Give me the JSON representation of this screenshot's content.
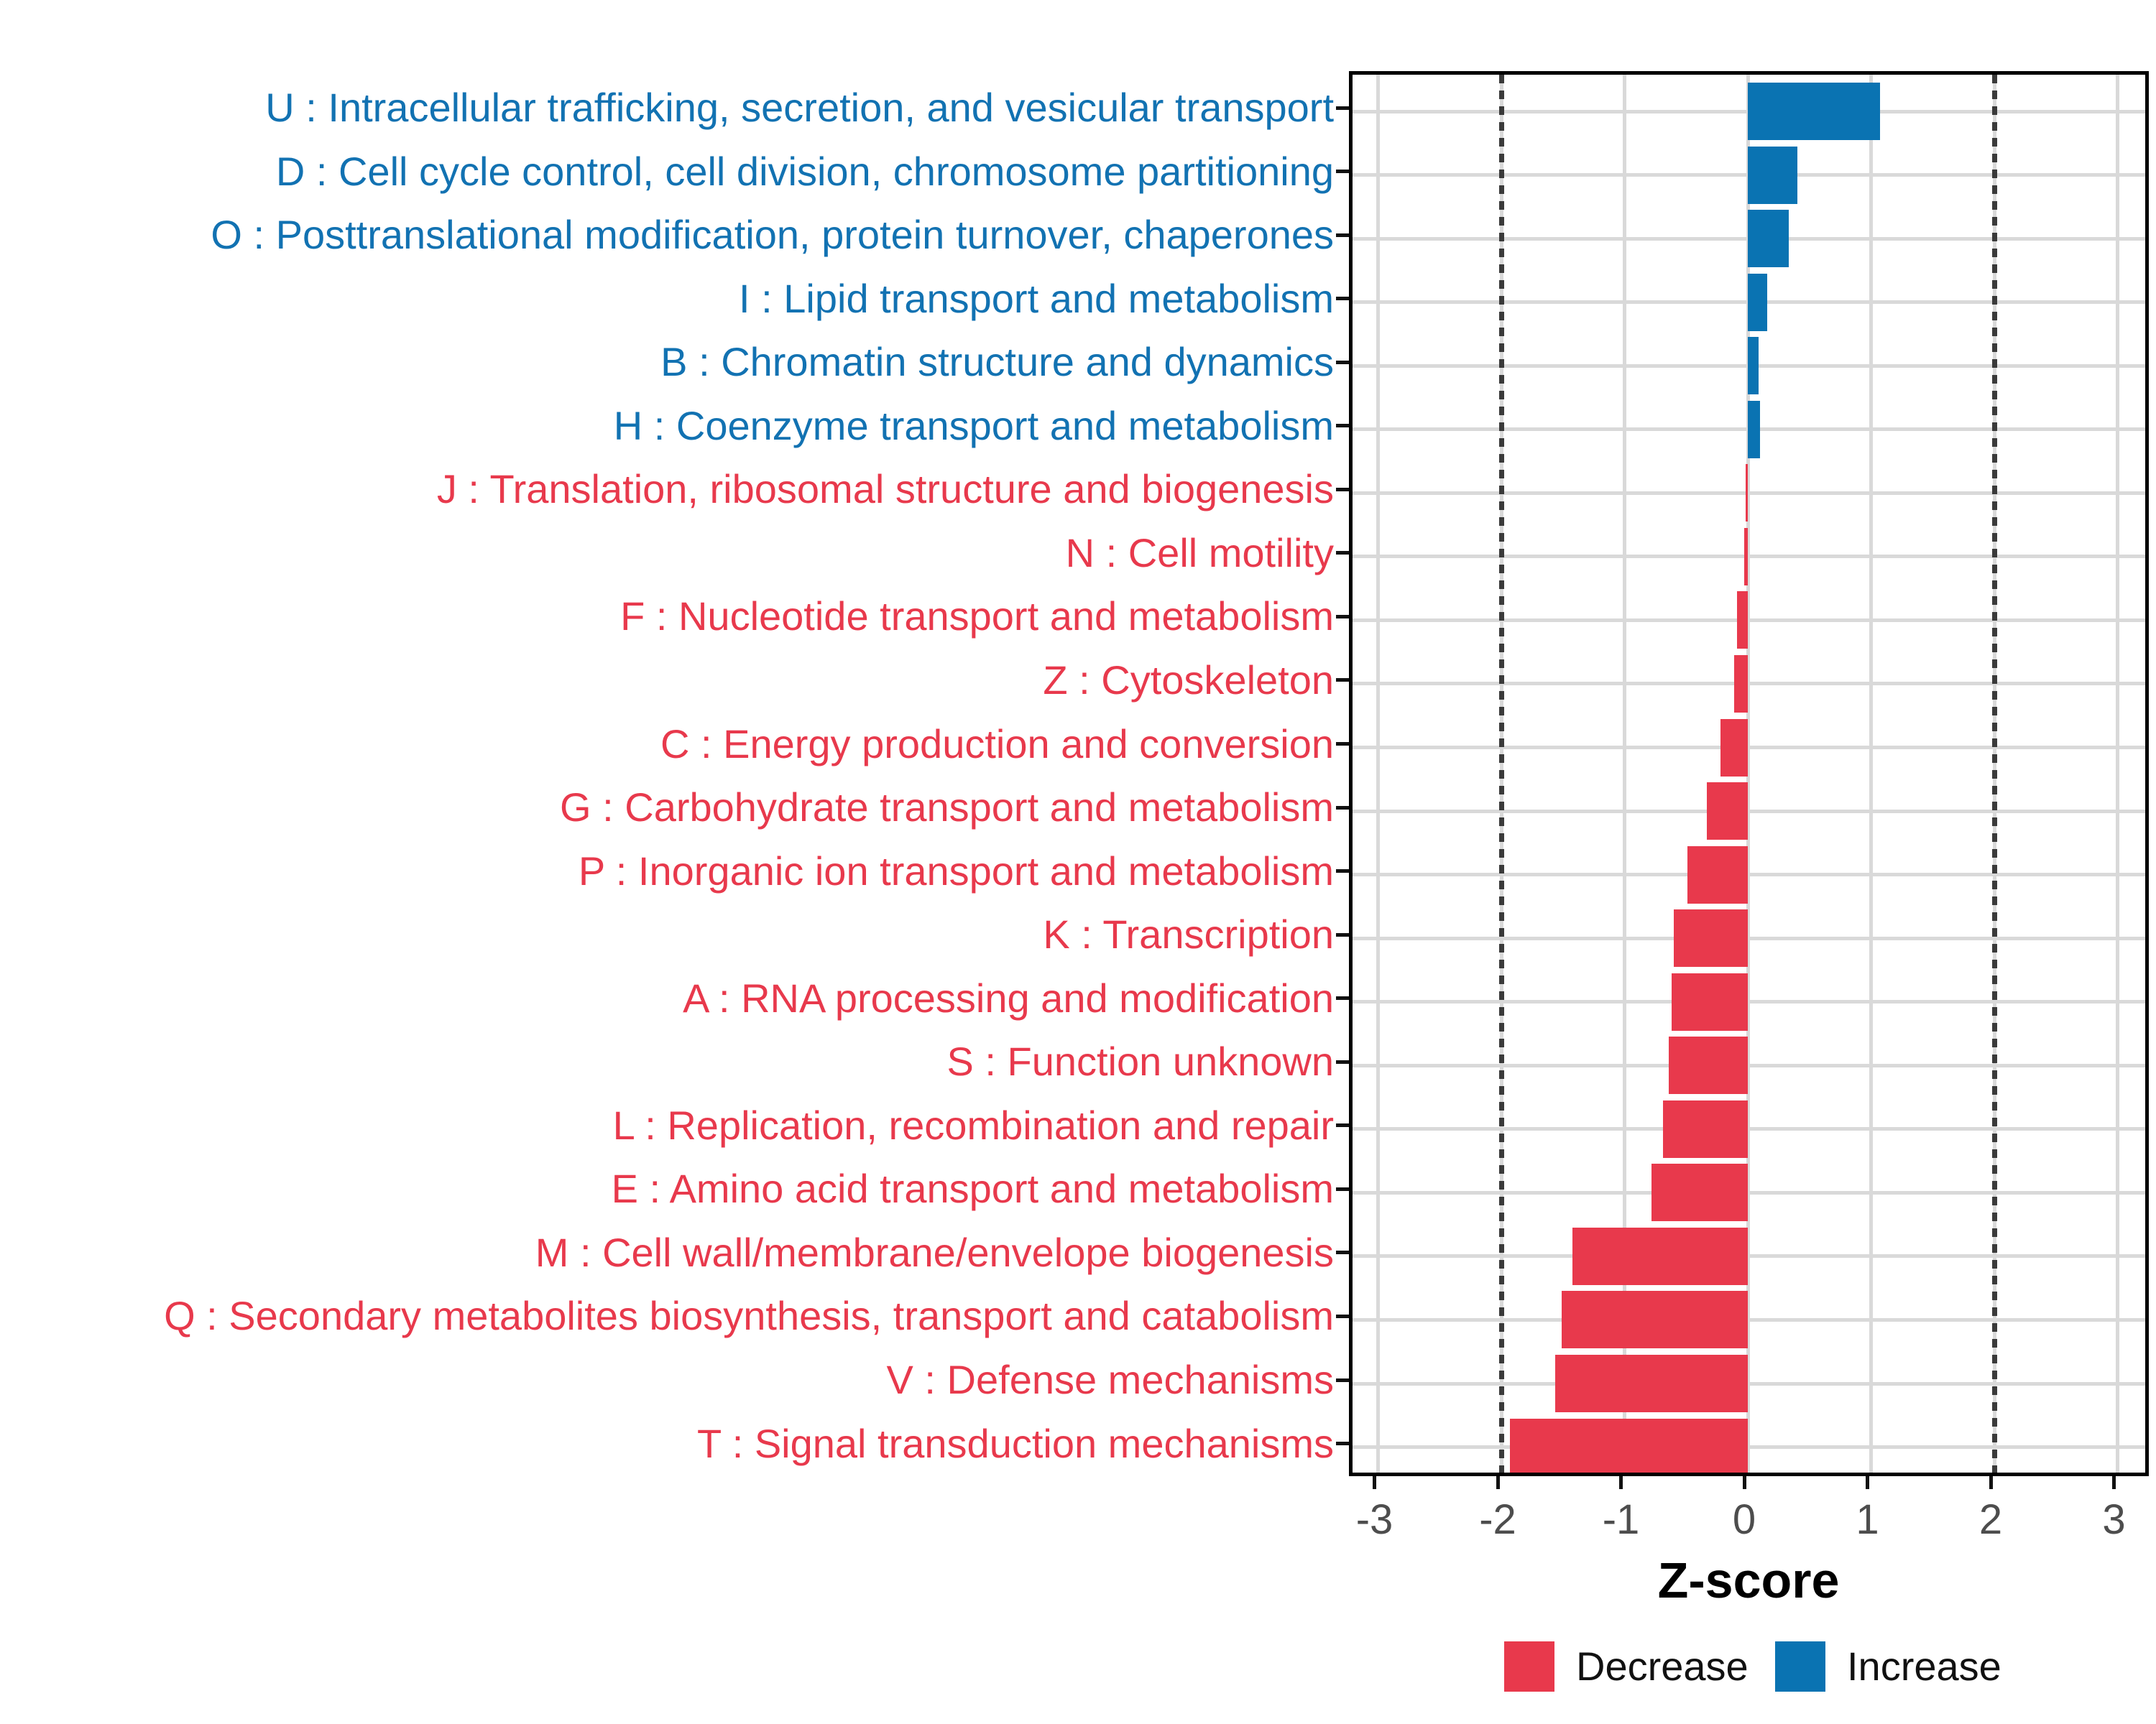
{
  "chart_data": {
    "type": "bar",
    "orientation": "horizontal",
    "xlabel": "Z-score",
    "x_ticks": [
      "-3",
      "-2",
      "-1",
      "0",
      "1",
      "2",
      "3"
    ],
    "x_tick_values": [
      -3,
      -2,
      -1,
      0,
      1,
      2,
      3
    ],
    "xlim": [
      -3.3,
      3.3
    ],
    "reference_lines": [
      -2,
      2
    ],
    "grid": "major-only",
    "legend_position": "bottom",
    "categories": [
      "U : Intracellular trafficking, secretion, and vesicular transport",
      "D : Cell cycle control, cell division, chromosome partitioning",
      "O : Posttranslational modification, protein turnover, chaperones",
      "I : Lipid transport and metabolism",
      "B : Chromatin structure and dynamics",
      "H : Coenzyme transport and metabolism",
      "J : Translation, ribosomal structure and biogenesis",
      "N : Cell motility",
      "F : Nucleotide transport and metabolism",
      "Z : Cytoskeleton",
      "C : Energy production and conversion",
      "G : Carbohydrate transport and metabolism",
      "P : Inorganic ion transport and metabolism",
      "K : Transcription",
      "A : RNA processing and modification",
      "S : Function unknown",
      "L : Replication, recombination and repair",
      "E : Amino acid transport and metabolism",
      "M : Cell wall/membrane/envelope biogenesis",
      "Q : Secondary metabolites biosynthesis, transport and catabolism",
      "V : Defense mechanisms",
      "T : Signal transduction mechanisms"
    ],
    "values": [
      1.07,
      0.4,
      0.33,
      0.16,
      0.09,
      0.1,
      -0.02,
      -0.03,
      -0.09,
      -0.11,
      -0.22,
      -0.33,
      -0.49,
      -0.6,
      -0.62,
      -0.64,
      -0.69,
      -0.78,
      -1.42,
      -1.51,
      -1.56,
      -1.93
    ],
    "groups": [
      "Increase",
      "Increase",
      "Increase",
      "Increase",
      "Increase",
      "Increase",
      "Decrease",
      "Decrease",
      "Decrease",
      "Decrease",
      "Decrease",
      "Decrease",
      "Decrease",
      "Decrease",
      "Decrease",
      "Decrease",
      "Decrease",
      "Decrease",
      "Decrease",
      "Decrease",
      "Decrease",
      "Decrease"
    ],
    "colors": {
      "increase": "#0a73b2",
      "decrease": "#e8394c",
      "increase_text": "#1272b2",
      "decrease_text": "#e8394c",
      "gridline": "#d9d9d9",
      "reference_line": "#3a3a3a",
      "axis_text": "#4d4d4d"
    },
    "legend": [
      {
        "label": "Decrease",
        "color": "#e8394c"
      },
      {
        "label": "Increase",
        "color": "#0a73b2"
      }
    ]
  }
}
